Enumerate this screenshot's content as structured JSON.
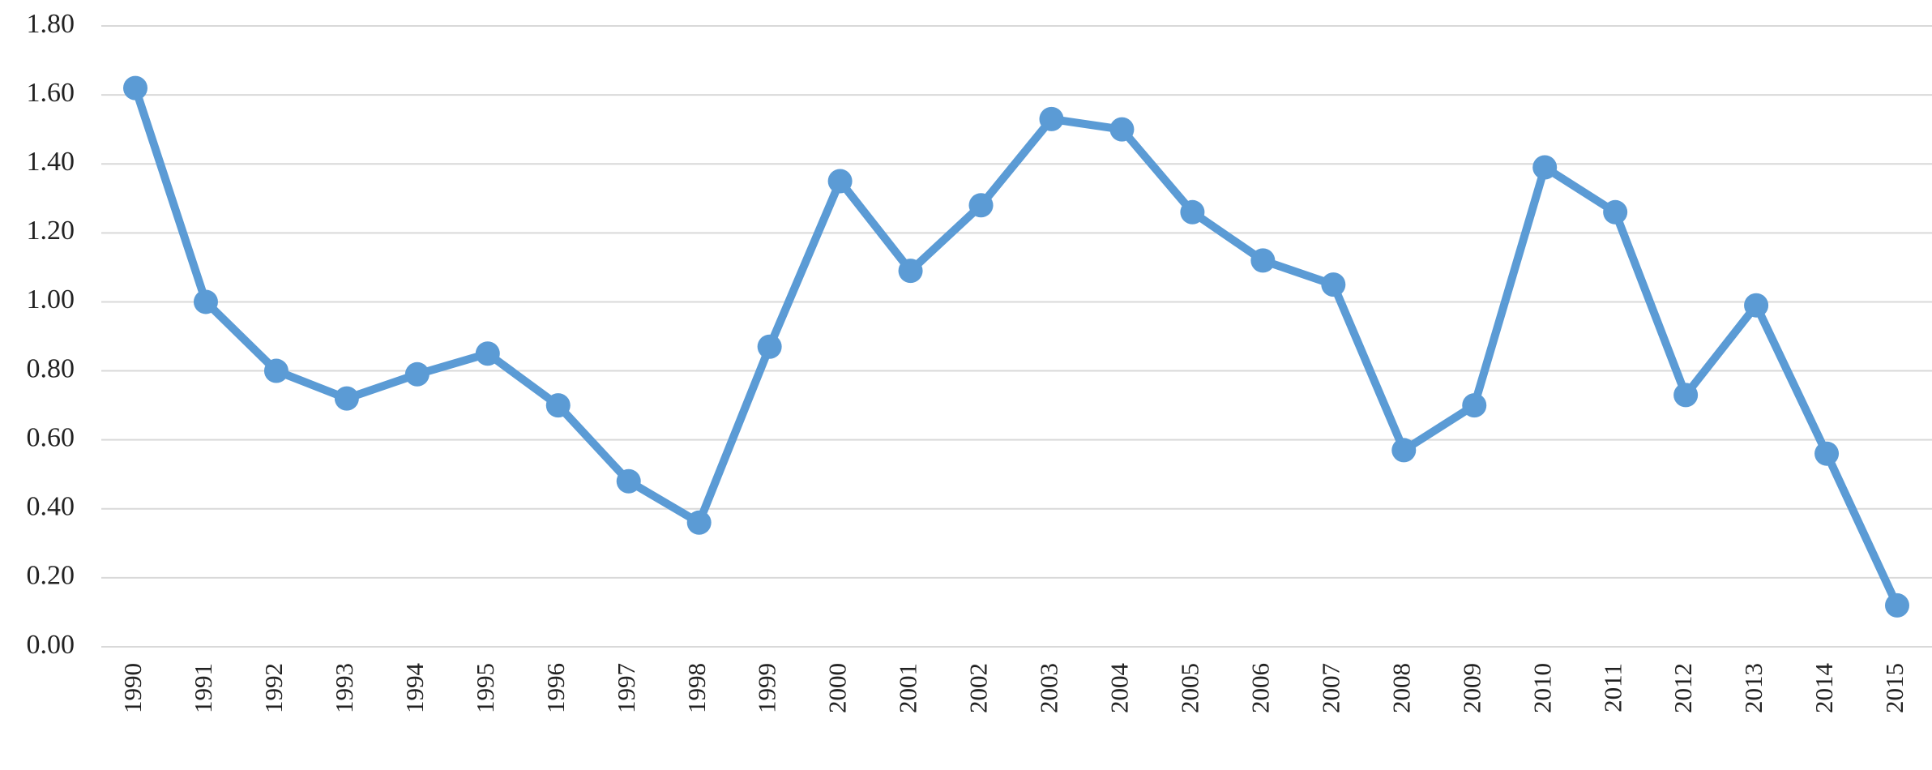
{
  "chart_data": {
    "type": "line",
    "categories": [
      "1990",
      "1991",
      "1992",
      "1993",
      "1994",
      "1995",
      "1996",
      "1997",
      "1998",
      "1999",
      "2000",
      "2001",
      "2002",
      "2003",
      "2004",
      "2005",
      "2006",
      "2007",
      "2008",
      "2009",
      "2010",
      "2011",
      "2012",
      "2013",
      "2014",
      "2015"
    ],
    "values": [
      1.62,
      1.0,
      0.8,
      0.72,
      0.79,
      0.85,
      0.7,
      0.48,
      0.36,
      0.87,
      1.35,
      1.09,
      1.28,
      1.53,
      1.5,
      1.26,
      1.12,
      1.05,
      0.57,
      0.7,
      1.39,
      1.26,
      0.73,
      0.99,
      0.56,
      0.12
    ],
    "color": "#5b9bd5",
    "ylim": [
      0,
      1.8
    ],
    "yticks": [
      {
        "value": 0,
        "label": "0.00"
      },
      {
        "value": 0.2,
        "label": "0.20"
      },
      {
        "value": 0.4,
        "label": "0.40"
      },
      {
        "value": 0.6,
        "label": "0.60"
      },
      {
        "value": 0.8,
        "label": "0.80"
      },
      {
        "value": 1.0,
        "label": "1.00"
      },
      {
        "value": 1.2,
        "label": "1.20"
      },
      {
        "value": 1.4,
        "label": "1.40"
      },
      {
        "value": 1.6,
        "label": "1.60"
      },
      {
        "value": 1.8,
        "label": "1.80"
      }
    ],
    "grid": true
  }
}
